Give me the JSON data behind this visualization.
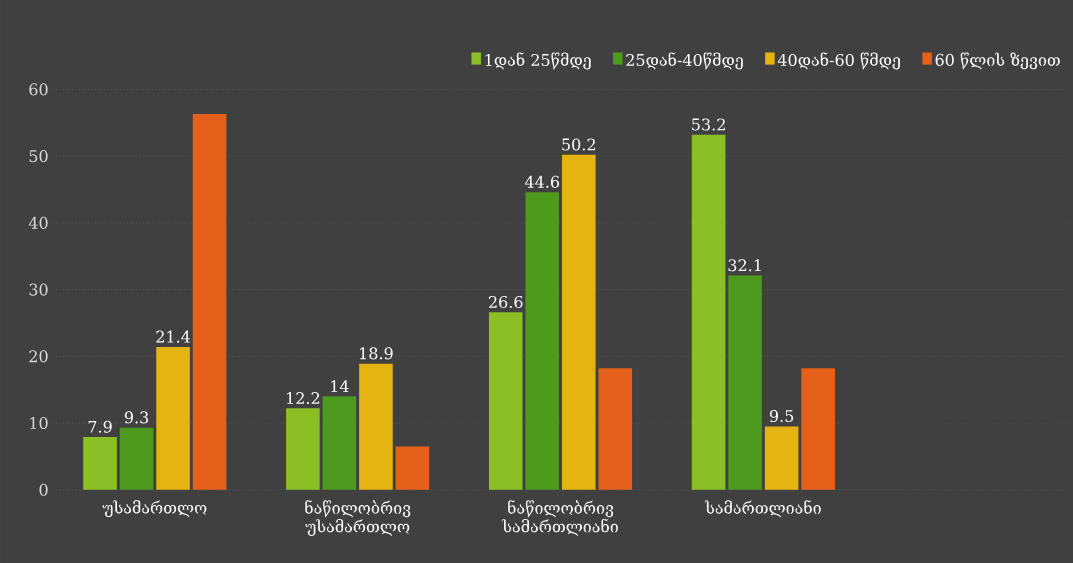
{
  "chart_data": {
    "type": "bar",
    "categories": [
      "უსამართლო",
      "ნაწილობრივ უსამართლო",
      "ნაწილობრივ სამართლიანი",
      "სამართლიანი",
      null
    ],
    "series": [
      {
        "name": "1დან 25წმდე",
        "color": "#8cbf26",
        "values": [
          7.9,
          12.2,
          26.6,
          53.2,
          null
        ],
        "value_labels": [
          "7.9",
          "12.2",
          "26.6",
          "53.2",
          null
        ]
      },
      {
        "name": "25დან-40წმდე",
        "color": "#4e9a1e",
        "values": [
          9.3,
          14,
          44.6,
          32.1,
          null
        ],
        "value_labels": [
          "9.3",
          "14",
          "44.6",
          "32.1",
          null
        ]
      },
      {
        "name": "40დან-60 წმდე",
        "color": "#e6b412",
        "values": [
          21.4,
          18.9,
          50.2,
          9.5,
          null
        ],
        "value_labels": [
          "21.4",
          "18.9",
          "50.2",
          "9.5",
          null
        ]
      },
      {
        "name": "60 წლის ზევით",
        "color": "#e5601a",
        "values": [
          56.3,
          6.5,
          18.2,
          18.2,
          null
        ]
      }
    ],
    "ylim": [
      0,
      60
    ],
    "yticks": [
      0,
      10,
      20,
      30,
      40,
      50,
      60
    ],
    "grid": "y",
    "legend": "top right"
  }
}
